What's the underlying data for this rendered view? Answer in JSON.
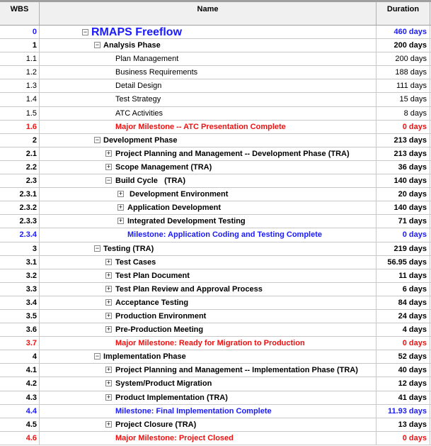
{
  "columns": {
    "wbs": "WBS",
    "name": "Name",
    "duration": "Duration"
  },
  "colors": {
    "milestone_blue": "#1a1aff",
    "major_milestone_red": "#f01010"
  },
  "rows": [
    {
      "wbs": "0",
      "name": "RMAPS Freeflow",
      "duration": "460 days",
      "level": 0,
      "toggle": "minus",
      "style": "title"
    },
    {
      "wbs": "1",
      "name": "Analysis Phase",
      "duration": "200 days",
      "level": 1,
      "toggle": "minus",
      "style": "bold"
    },
    {
      "wbs": "1.1",
      "name": "Plan Management",
      "duration": "200 days",
      "level": 2,
      "toggle": "",
      "style": "normal"
    },
    {
      "wbs": "1.2",
      "name": "Business Requirements",
      "duration": "188 days",
      "level": 2,
      "toggle": "",
      "style": "normal"
    },
    {
      "wbs": "1.3",
      "name": "Detail Design",
      "duration": "111 days",
      "level": 2,
      "toggle": "",
      "style": "normal"
    },
    {
      "wbs": "1.4",
      "name": "Test Strategy",
      "duration": "15 days",
      "level": 2,
      "toggle": "",
      "style": "normal"
    },
    {
      "wbs": "1.5",
      "name": "ATC Activities",
      "duration": "8 days",
      "level": 2,
      "toggle": "",
      "style": "normal"
    },
    {
      "wbs": "1.6",
      "name": "Major Milestone -- ATC Presentation Complete",
      "duration": "0 days",
      "level": 2,
      "toggle": "",
      "style": "red"
    },
    {
      "wbs": "2",
      "name": "Development Phase",
      "duration": "213 days",
      "level": 1,
      "toggle": "minus",
      "style": "bold"
    },
    {
      "wbs": "2.1",
      "name": "Project Planning and Management -- Development Phase (TRA)",
      "duration": "213 days",
      "level": 2,
      "toggle": "plus",
      "style": "bold"
    },
    {
      "wbs": "2.2",
      "name": "Scope Management (TRA)",
      "duration": "36 days",
      "level": 2,
      "toggle": "plus",
      "style": "bold"
    },
    {
      "wbs": "2.3",
      "name": "Build Cycle   (TRA)",
      "duration": "140 days",
      "level": 2,
      "toggle": "minus",
      "style": "bold"
    },
    {
      "wbs": "2.3.1",
      "name": " Development Environment",
      "duration": "20 days",
      "level": 3,
      "toggle": "plus",
      "style": "bold"
    },
    {
      "wbs": "2.3.2",
      "name": "Application Development",
      "duration": "140 days",
      "level": 3,
      "toggle": "plus",
      "style": "bold"
    },
    {
      "wbs": "2.3.3",
      "name": "Integrated Development Testing",
      "duration": "71 days",
      "level": 3,
      "toggle": "plus",
      "style": "bold"
    },
    {
      "wbs": "2.3.4",
      "name": "Milestone: Application Coding and Testing Complete",
      "duration": "0 days",
      "level": 3,
      "toggle": "",
      "style": "blue"
    },
    {
      "wbs": "3",
      "name": "Testing (TRA)",
      "duration": "219 days",
      "level": 1,
      "toggle": "minus",
      "style": "bold"
    },
    {
      "wbs": "3.1",
      "name": "Test Cases",
      "duration": "56.95 days",
      "level": 2,
      "toggle": "plus",
      "style": "bold"
    },
    {
      "wbs": "3.2",
      "name": "Test Plan Document",
      "duration": "11 days",
      "level": 2,
      "toggle": "plus",
      "style": "bold"
    },
    {
      "wbs": "3.3",
      "name": "Test Plan Review and Approval Process",
      "duration": "6 days",
      "level": 2,
      "toggle": "plus",
      "style": "bold"
    },
    {
      "wbs": "3.4",
      "name": "Acceptance Testing",
      "duration": "84 days",
      "level": 2,
      "toggle": "plus",
      "style": "bold"
    },
    {
      "wbs": "3.5",
      "name": "Production Environment",
      "duration": "24 days",
      "level": 2,
      "toggle": "plus",
      "style": "bold"
    },
    {
      "wbs": "3.6",
      "name": "Pre-Production Meeting",
      "duration": "4 days",
      "level": 2,
      "toggle": "plus",
      "style": "bold"
    },
    {
      "wbs": "3.7",
      "name": "Major Milestone: Ready for Migration to Production",
      "duration": "0 days",
      "level": 2,
      "toggle": "",
      "style": "red"
    },
    {
      "wbs": "4",
      "name": "Implementation Phase",
      "duration": "52 days",
      "level": 1,
      "toggle": "minus",
      "style": "bold"
    },
    {
      "wbs": "4.1",
      "name": "Project Planning and Management -- Implementation Phase (TRA)",
      "duration": "40 days",
      "level": 2,
      "toggle": "plus",
      "style": "bold"
    },
    {
      "wbs": "4.2",
      "name": "System/Product Migration",
      "duration": "12 days",
      "level": 2,
      "toggle": "plus",
      "style": "bold"
    },
    {
      "wbs": "4.3",
      "name": "Product Implementation (TRA)",
      "duration": "41 days",
      "level": 2,
      "toggle": "plus",
      "style": "bold"
    },
    {
      "wbs": "4.4",
      "name": "Milestone: Final Implementation Complete",
      "duration": "11.93 days",
      "level": 2,
      "toggle": "",
      "style": "blue"
    },
    {
      "wbs": "4.5",
      "name": "Project Closure (TRA)",
      "duration": "13 days",
      "level": 2,
      "toggle": "plus",
      "style": "bold"
    },
    {
      "wbs": "4.6",
      "name": "Major Milestone: Project Closed",
      "duration": "0 days",
      "level": 2,
      "toggle": "",
      "style": "red"
    }
  ]
}
